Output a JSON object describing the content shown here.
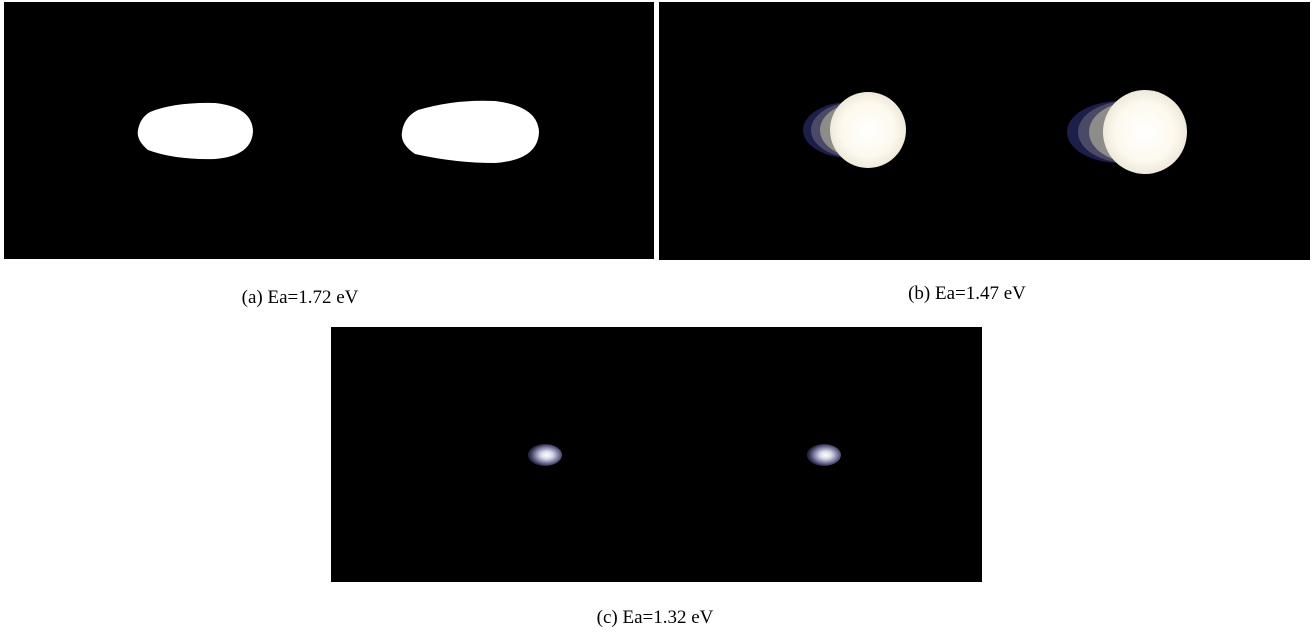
{
  "panels": [
    {
      "caption": "(a) Ea=1.72 eV"
    },
    {
      "caption": "(b) Ea=1.47 eV"
    },
    {
      "caption": "(c) Ea=1.32 eV"
    }
  ]
}
